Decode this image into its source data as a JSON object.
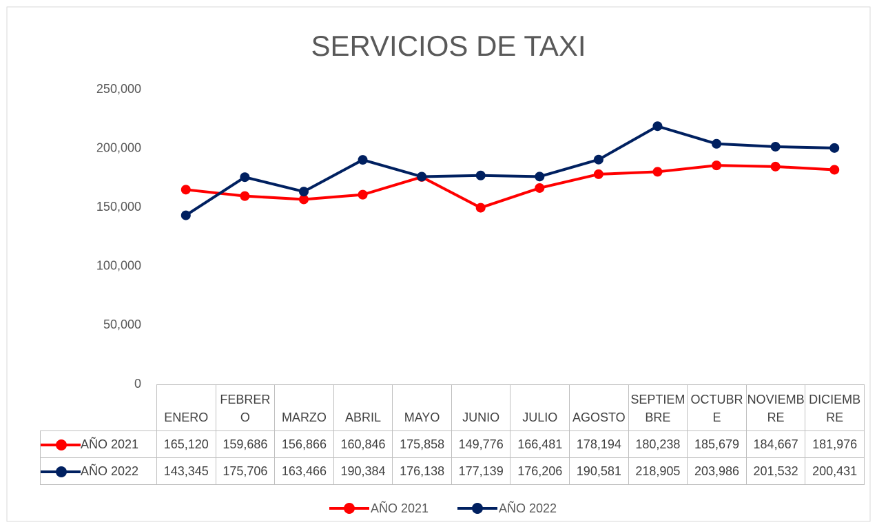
{
  "chart_data": {
    "type": "line",
    "title": "SERVICIOS DE TAXI",
    "categories": [
      "ENERO",
      "FEBRERO",
      "MARZO",
      "ABRIL",
      "MAYO",
      "JUNIO",
      "JULIO",
      "AGOSTO",
      "SEPTIEMBRE",
      "OCTUBRE",
      "NOVIEMBRE",
      "DICIEMBRE"
    ],
    "series": [
      {
        "name": "AÑO 2021",
        "color": "#ff0000",
        "values": [
          165120,
          159686,
          156866,
          160846,
          175858,
          149776,
          166481,
          178194,
          180238,
          185679,
          184667,
          181976
        ],
        "value_labels": [
          "165,120",
          "159,686",
          "156,866",
          "160,846",
          "175,858",
          "149,776",
          "166,481",
          "178,194",
          "180,238",
          "185,679",
          "184,667",
          "181,976"
        ]
      },
      {
        "name": "AÑO 2022",
        "color": "#002060",
        "values": [
          143345,
          175706,
          163466,
          190384,
          176138,
          177139,
          176206,
          190581,
          218905,
          203986,
          201532,
          200431
        ],
        "value_labels": [
          "143,345",
          "175,706",
          "163,466",
          "190,384",
          "176,138",
          "177,139",
          "176,206",
          "190,581",
          "218,905",
          "203,986",
          "201,532",
          "200,431"
        ]
      }
    ],
    "ylim": [
      0,
      250000
    ],
    "yticks": [
      0,
      {
        "value": 50000,
        "label": "50,000"
      },
      {
        "value": 100000,
        "label": "100,000"
      },
      {
        "value": 150000,
        "label": "150,000"
      },
      {
        "value": 200000,
        "label": "200,000"
      },
      {
        "value": 250000,
        "label": "250,000"
      }
    ],
    "grid": false,
    "legend": "bottom"
  }
}
